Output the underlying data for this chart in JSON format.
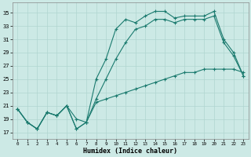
{
  "xlabel": "Humidex (Indice chaleur)",
  "xlim": [
    -0.5,
    23.5
  ],
  "ylim": [
    16.0,
    36.5
  ],
  "yticks": [
    17,
    19,
    21,
    23,
    25,
    27,
    29,
    31,
    33,
    35
  ],
  "xticks": [
    0,
    1,
    2,
    3,
    4,
    5,
    6,
    7,
    8,
    9,
    10,
    11,
    12,
    13,
    14,
    15,
    16,
    17,
    18,
    19,
    20,
    21,
    22,
    23
  ],
  "line_color": "#1a7a6e",
  "bg_color": "#cce9e5",
  "grid_color": "#b0d5d0",
  "line1_y": [
    20.5,
    18.5,
    17.5,
    20.0,
    19.5,
    21.0,
    17.5,
    18.5,
    25.0,
    28.0,
    32.5,
    34.0,
    33.5,
    34.5,
    35.2,
    35.2,
    34.2,
    34.5,
    34.5,
    34.5,
    35.2,
    31.0,
    29.0,
    25.5
  ],
  "line2_y": [
    20.5,
    18.5,
    17.5,
    20.0,
    19.5,
    21.0,
    17.5,
    18.5,
    22.0,
    25.0,
    28.0,
    30.5,
    32.5,
    33.0,
    34.0,
    34.0,
    33.5,
    34.0,
    34.0,
    34.0,
    34.5,
    30.5,
    28.5,
    25.5
  ],
  "line3_y": [
    20.5,
    18.5,
    17.5,
    20.0,
    19.5,
    21.0,
    19.0,
    18.5,
    21.5,
    22.0,
    22.5,
    23.0,
    23.5,
    24.0,
    24.5,
    25.0,
    25.5,
    26.0,
    26.0,
    26.5,
    26.5,
    26.5,
    26.5,
    26.0
  ]
}
